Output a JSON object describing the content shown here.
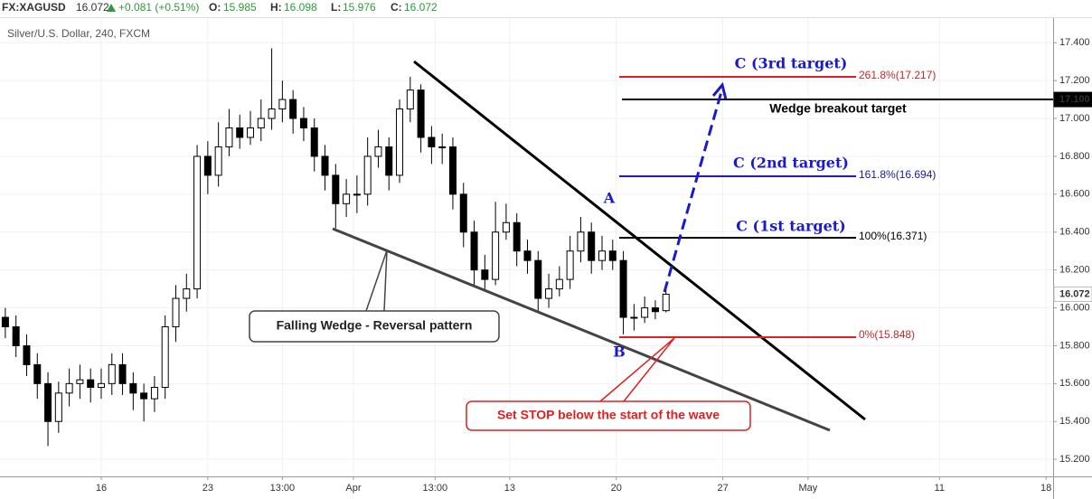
{
  "header": {
    "symbol": "FX:XAGUSD",
    "last": 16.072,
    "change": "+0.081 (+0.51%)",
    "open_label": "O:",
    "open": 15.985,
    "high_label": "H:",
    "high": 16.098,
    "low_label": "L:",
    "low": 15.976,
    "close_label": "C:",
    "close": 16.072
  },
  "chart_data": {
    "type": "candlestick",
    "title": "Silver/U.S. Dollar, 240, FXCM",
    "x": [
      -27,
      -24,
      -21,
      -18,
      -15,
      -12,
      -9,
      -6,
      -3,
      0,
      3,
      6,
      9,
      12,
      15,
      18,
      21,
      24,
      27,
      30,
      33,
      36,
      39,
      42,
      45,
      48,
      51,
      54,
      57,
      60,
      63,
      66,
      69,
      72,
      75,
      78,
      81,
      84,
      87,
      90,
      93,
      96,
      99,
      102,
      105,
      108,
      111,
      114,
      117,
      120,
      123,
      126,
      129,
      132,
      135,
      138,
      141,
      144,
      147,
      150,
      153,
      156,
      159
    ],
    "open": [
      15.95,
      15.9,
      15.8,
      15.7,
      15.6,
      15.4,
      15.55,
      15.6,
      15.62,
      15.58,
      15.6,
      15.7,
      15.6,
      15.55,
      15.52,
      15.58,
      15.9,
      16.05,
      16.1,
      16.8,
      16.7,
      16.85,
      16.95,
      16.9,
      16.95,
      17.0,
      17.05,
      17.1,
      17.0,
      16.95,
      16.8,
      16.7,
      16.55,
      16.6,
      16.6,
      16.8,
      16.85,
      16.7,
      17.05,
      17.15,
      16.9,
      16.85,
      16.85,
      16.6,
      16.4,
      16.2,
      16.15,
      16.4,
      16.45,
      16.3,
      16.25,
      16.05,
      16.1,
      16.15,
      16.3,
      16.4,
      16.25,
      16.3,
      16.25,
      15.95,
      15.95,
      16.0,
      15.985
    ],
    "high": [
      16.0,
      15.96,
      15.86,
      15.76,
      15.66,
      15.61,
      15.68,
      15.7,
      15.68,
      15.68,
      15.76,
      15.76,
      15.66,
      15.6,
      15.64,
      15.96,
      16.12,
      16.18,
      16.86,
      16.88,
      16.98,
      17.05,
      17.02,
      17.04,
      17.1,
      17.37,
      17.2,
      17.15,
      17.06,
      17.0,
      16.86,
      16.76,
      16.68,
      16.7,
      16.9,
      16.94,
      16.9,
      17.1,
      17.22,
      17.18,
      16.96,
      16.92,
      16.9,
      16.66,
      16.46,
      16.28,
      16.56,
      16.55,
      16.5,
      16.36,
      16.3,
      16.18,
      16.22,
      16.38,
      16.48,
      16.45,
      16.38,
      16.36,
      16.3,
      16.02,
      16.06,
      16.04,
      16.098
    ],
    "low": [
      15.84,
      15.74,
      15.64,
      15.52,
      15.27,
      15.34,
      15.48,
      15.52,
      15.5,
      15.52,
      15.54,
      15.54,
      15.46,
      15.4,
      15.45,
      15.52,
      15.82,
      15.98,
      16.05,
      16.6,
      16.64,
      16.8,
      16.84,
      16.86,
      16.88,
      16.94,
      16.98,
      16.92,
      16.88,
      16.72,
      16.62,
      16.42,
      16.48,
      16.5,
      16.54,
      16.74,
      16.62,
      16.66,
      16.98,
      16.82,
      16.76,
      16.76,
      16.52,
      16.32,
      16.12,
      16.1,
      16.12,
      16.36,
      16.22,
      16.18,
      15.98,
      16.0,
      16.06,
      16.1,
      16.24,
      16.18,
      16.2,
      16.2,
      15.86,
      15.88,
      15.92,
      15.94,
      15.976
    ],
    "close": [
      15.9,
      15.8,
      15.7,
      15.6,
      15.4,
      15.55,
      15.6,
      15.62,
      15.58,
      15.6,
      15.7,
      15.6,
      15.55,
      15.52,
      15.58,
      15.9,
      16.05,
      16.1,
      16.8,
      16.7,
      16.85,
      16.95,
      16.9,
      16.95,
      17.0,
      17.05,
      17.1,
      17.0,
      16.95,
      16.8,
      16.7,
      16.55,
      16.6,
      16.6,
      16.8,
      16.85,
      16.7,
      17.05,
      17.15,
      16.9,
      16.85,
      16.85,
      16.6,
      16.4,
      16.2,
      16.15,
      16.4,
      16.45,
      16.3,
      16.25,
      16.05,
      16.1,
      16.15,
      16.3,
      16.4,
      16.25,
      16.3,
      16.25,
      15.95,
      15.95,
      16.0,
      15.98,
      16.072
    ],
    "up_color": "#ffffff",
    "down_color": "#000000",
    "xlim": [
      -28.5,
      268
    ],
    "xticks": [
      {
        "value": 0,
        "label": "16"
      },
      {
        "value": 30,
        "label": "23"
      },
      {
        "value": 51,
        "label": "13:00"
      },
      {
        "value": 71,
        "label": "Apr"
      },
      {
        "value": 94,
        "label": "13:00"
      },
      {
        "value": 115,
        "label": "13"
      },
      {
        "value": 145,
        "label": "20"
      },
      {
        "value": 175,
        "label": "27"
      },
      {
        "value": 199,
        "label": "May"
      },
      {
        "value": 236,
        "label": "11"
      },
      {
        "value": 266,
        "label": "18"
      }
    ],
    "ylim": [
      15.11,
      17.53
    ],
    "yticks": [
      {
        "value": 15.2,
        "label": "15.200"
      },
      {
        "value": 15.4,
        "label": "15.400"
      },
      {
        "value": 15.6,
        "label": "15.600"
      },
      {
        "value": 15.8,
        "label": "15.800"
      },
      {
        "value": 16.0,
        "label": "16.000"
      },
      {
        "value": 16.2,
        "label": "16.200"
      },
      {
        "value": 16.4,
        "label": "16.400"
      },
      {
        "value": 16.6,
        "label": "16.600"
      },
      {
        "value": 16.8,
        "label": "16.800"
      },
      {
        "value": 17.0,
        "label": "17.000"
      },
      {
        "value": 17.2,
        "label": "17.200"
      },
      {
        "value": 17.4,
        "label": "17.400"
      }
    ],
    "grid": true,
    "price_labels": [
      {
        "value": 17.1,
        "label": "17.100"
      },
      {
        "value": 16.072,
        "label": "16.072"
      }
    ],
    "annotations": {
      "c3": "C (3rd target)",
      "fib2618": "261.8%(17.217)",
      "breakout": "Wedge breakout target",
      "c2": "C (2nd target)",
      "fib1618": "161.8%(16.694)",
      "c1": "C (1st target)",
      "fib100": "100%(16.371)",
      "fib0": "0%(15.848)",
      "a": "A",
      "b": "B",
      "wedge": "Falling Wedge - Reversal pattern",
      "stop": "Set STOP below the start of the wave"
    }
  }
}
